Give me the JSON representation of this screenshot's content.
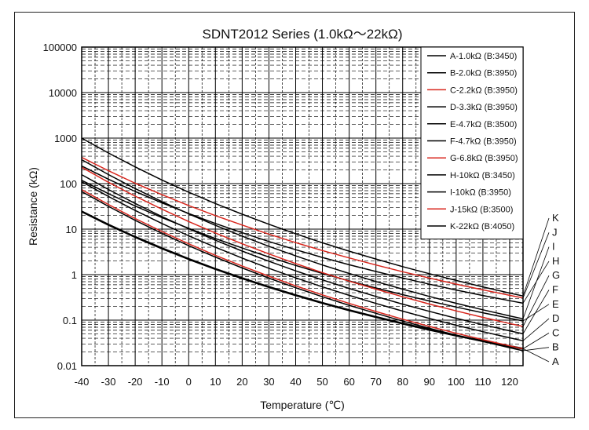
{
  "chart_data": {
    "type": "line",
    "title": "SDNT2012 Series (1.0kΩ～22kΩ)",
    "xlabel": "Temperature (℃)",
    "ylabel": "Resistance (kΩ)",
    "xlim": [
      -40,
      125
    ],
    "ylim": [
      0.01,
      100000
    ],
    "yscale": "log",
    "grid": true,
    "legend_position": "top-right",
    "x_ticks": [
      "-40",
      "-30",
      "-20",
      "-10",
      "0",
      "10",
      "20",
      "30",
      "40",
      "50",
      "60",
      "70",
      "80",
      "90",
      "100",
      "110",
      "120"
    ],
    "y_ticks": [
      "100000",
      "10000",
      "1000",
      "100",
      "10",
      "1",
      "0.1",
      "0.01"
    ],
    "x": [
      -40,
      -30,
      -20,
      -10,
      0,
      10,
      20,
      30,
      40,
      50,
      60,
      70,
      80,
      90,
      100,
      110,
      120,
      125
    ],
    "series": [
      {
        "name": "A-1.0kΩ (B:3450)",
        "end_label": "A",
        "color": "#000000",
        "bold": true,
        "values": [
          24.4,
          12.5,
          6.73,
          3.78,
          2.2,
          1.33,
          0.832,
          0.535,
          0.353,
          0.239,
          0.165,
          0.117,
          0.0842,
          0.0617,
          0.046,
          0.0348,
          0.0268,
          0.0236
        ]
      },
      {
        "name": "B-2.0kΩ (B:3950)",
        "end_label": "B",
        "color": "#000000",
        "values": [
          67,
          31.6,
          15.6,
          8.06,
          4.33,
          2.42,
          1.4,
          0.838,
          0.516,
          0.326,
          0.212,
          0.141,
          0.0955,
          0.0663,
          0.0469,
          0.0338,
          0.0248,
          0.0213
        ]
      },
      {
        "name": "C-2.2kΩ (B:3950)",
        "end_label": "C",
        "color": "#d8261d",
        "values": [
          73.7,
          34.8,
          17.1,
          8.86,
          4.76,
          2.66,
          1.54,
          0.922,
          0.567,
          0.359,
          0.233,
          0.155,
          0.105,
          0.0729,
          0.0516,
          0.0372,
          0.0273,
          0.0235
        ]
      },
      {
        "name": "D-3.3kΩ (B:3950)",
        "end_label": "D",
        "color": "#000000",
        "values": [
          110,
          52.1,
          25.7,
          13.3,
          7.14,
          3.99,
          2.31,
          1.38,
          0.851,
          0.538,
          0.35,
          0.233,
          0.158,
          0.109,
          0.0774,
          0.0558,
          0.0409,
          0.0352
        ]
      },
      {
        "name": "E-4.7kΩ (B:3500)",
        "end_label": "E",
        "color": "#000000",
        "values": [
          118,
          60.1,
          32.1,
          17.9,
          10.4,
          6.21,
          3.84,
          2.44,
          1.59,
          1.06,
          0.729,
          0.51,
          0.363,
          0.263,
          0.194,
          0.145,
          0.11,
          0.0962
        ]
      },
      {
        "name": "F-4.7kΩ (B:3950)",
        "end_label": "F",
        "color": "#000000",
        "values": [
          157,
          74.2,
          36.6,
          18.9,
          10.2,
          5.69,
          3.29,
          1.97,
          1.21,
          0.767,
          0.498,
          0.331,
          0.225,
          0.156,
          0.11,
          0.0795,
          0.0583,
          0.0502
        ]
      },
      {
        "name": "G-6.8kΩ (B:3950)",
        "end_label": "G",
        "color": "#d8261d",
        "values": [
          228,
          107,
          53,
          27.4,
          14.7,
          8.23,
          4.76,
          2.85,
          1.75,
          1.11,
          0.72,
          0.479,
          0.326,
          0.226,
          0.16,
          0.115,
          0.0843,
          0.0727
        ]
      },
      {
        "name": "H-10kΩ (B:3450)",
        "end_label": "H",
        "color": "#000000",
        "values": [
          244,
          125,
          67.3,
          37.8,
          22,
          13.3,
          8.32,
          5.35,
          3.53,
          2.39,
          1.65,
          1.17,
          0.842,
          0.617,
          0.46,
          0.348,
          0.268,
          0.236
        ]
      },
      {
        "name": "I-10kΩ (B:3950)",
        "end_label": "I",
        "color": "#000000",
        "values": [
          335,
          158,
          78,
          40.3,
          21.7,
          12.1,
          7.01,
          4.19,
          2.58,
          1.63,
          1.06,
          0.705,
          0.479,
          0.332,
          0.235,
          0.169,
          0.124,
          0.107
        ]
      },
      {
        "name": "J-15kΩ (B:3500)",
        "end_label": "J",
        "color": "#d8261d",
        "values": [
          376,
          192,
          102,
          57.1,
          33,
          19.8,
          12.3,
          7.77,
          5.06,
          3.38,
          2.33,
          1.63,
          1.16,
          0.84,
          0.619,
          0.463,
          0.351,
          0.307
        ]
      },
      {
        "name": "K-22kΩ (B:4050)",
        "end_label": "K",
        "color": "#000000",
        "values": [
          1000,
          470,
          233,
          120,
          65,
          36.5,
          21.3,
          12.8,
          7.9,
          5.02,
          3.28,
          2.2,
          1.5,
          1.05,
          0.745,
          0.538,
          0.393,
          0.34
        ]
      }
    ]
  }
}
